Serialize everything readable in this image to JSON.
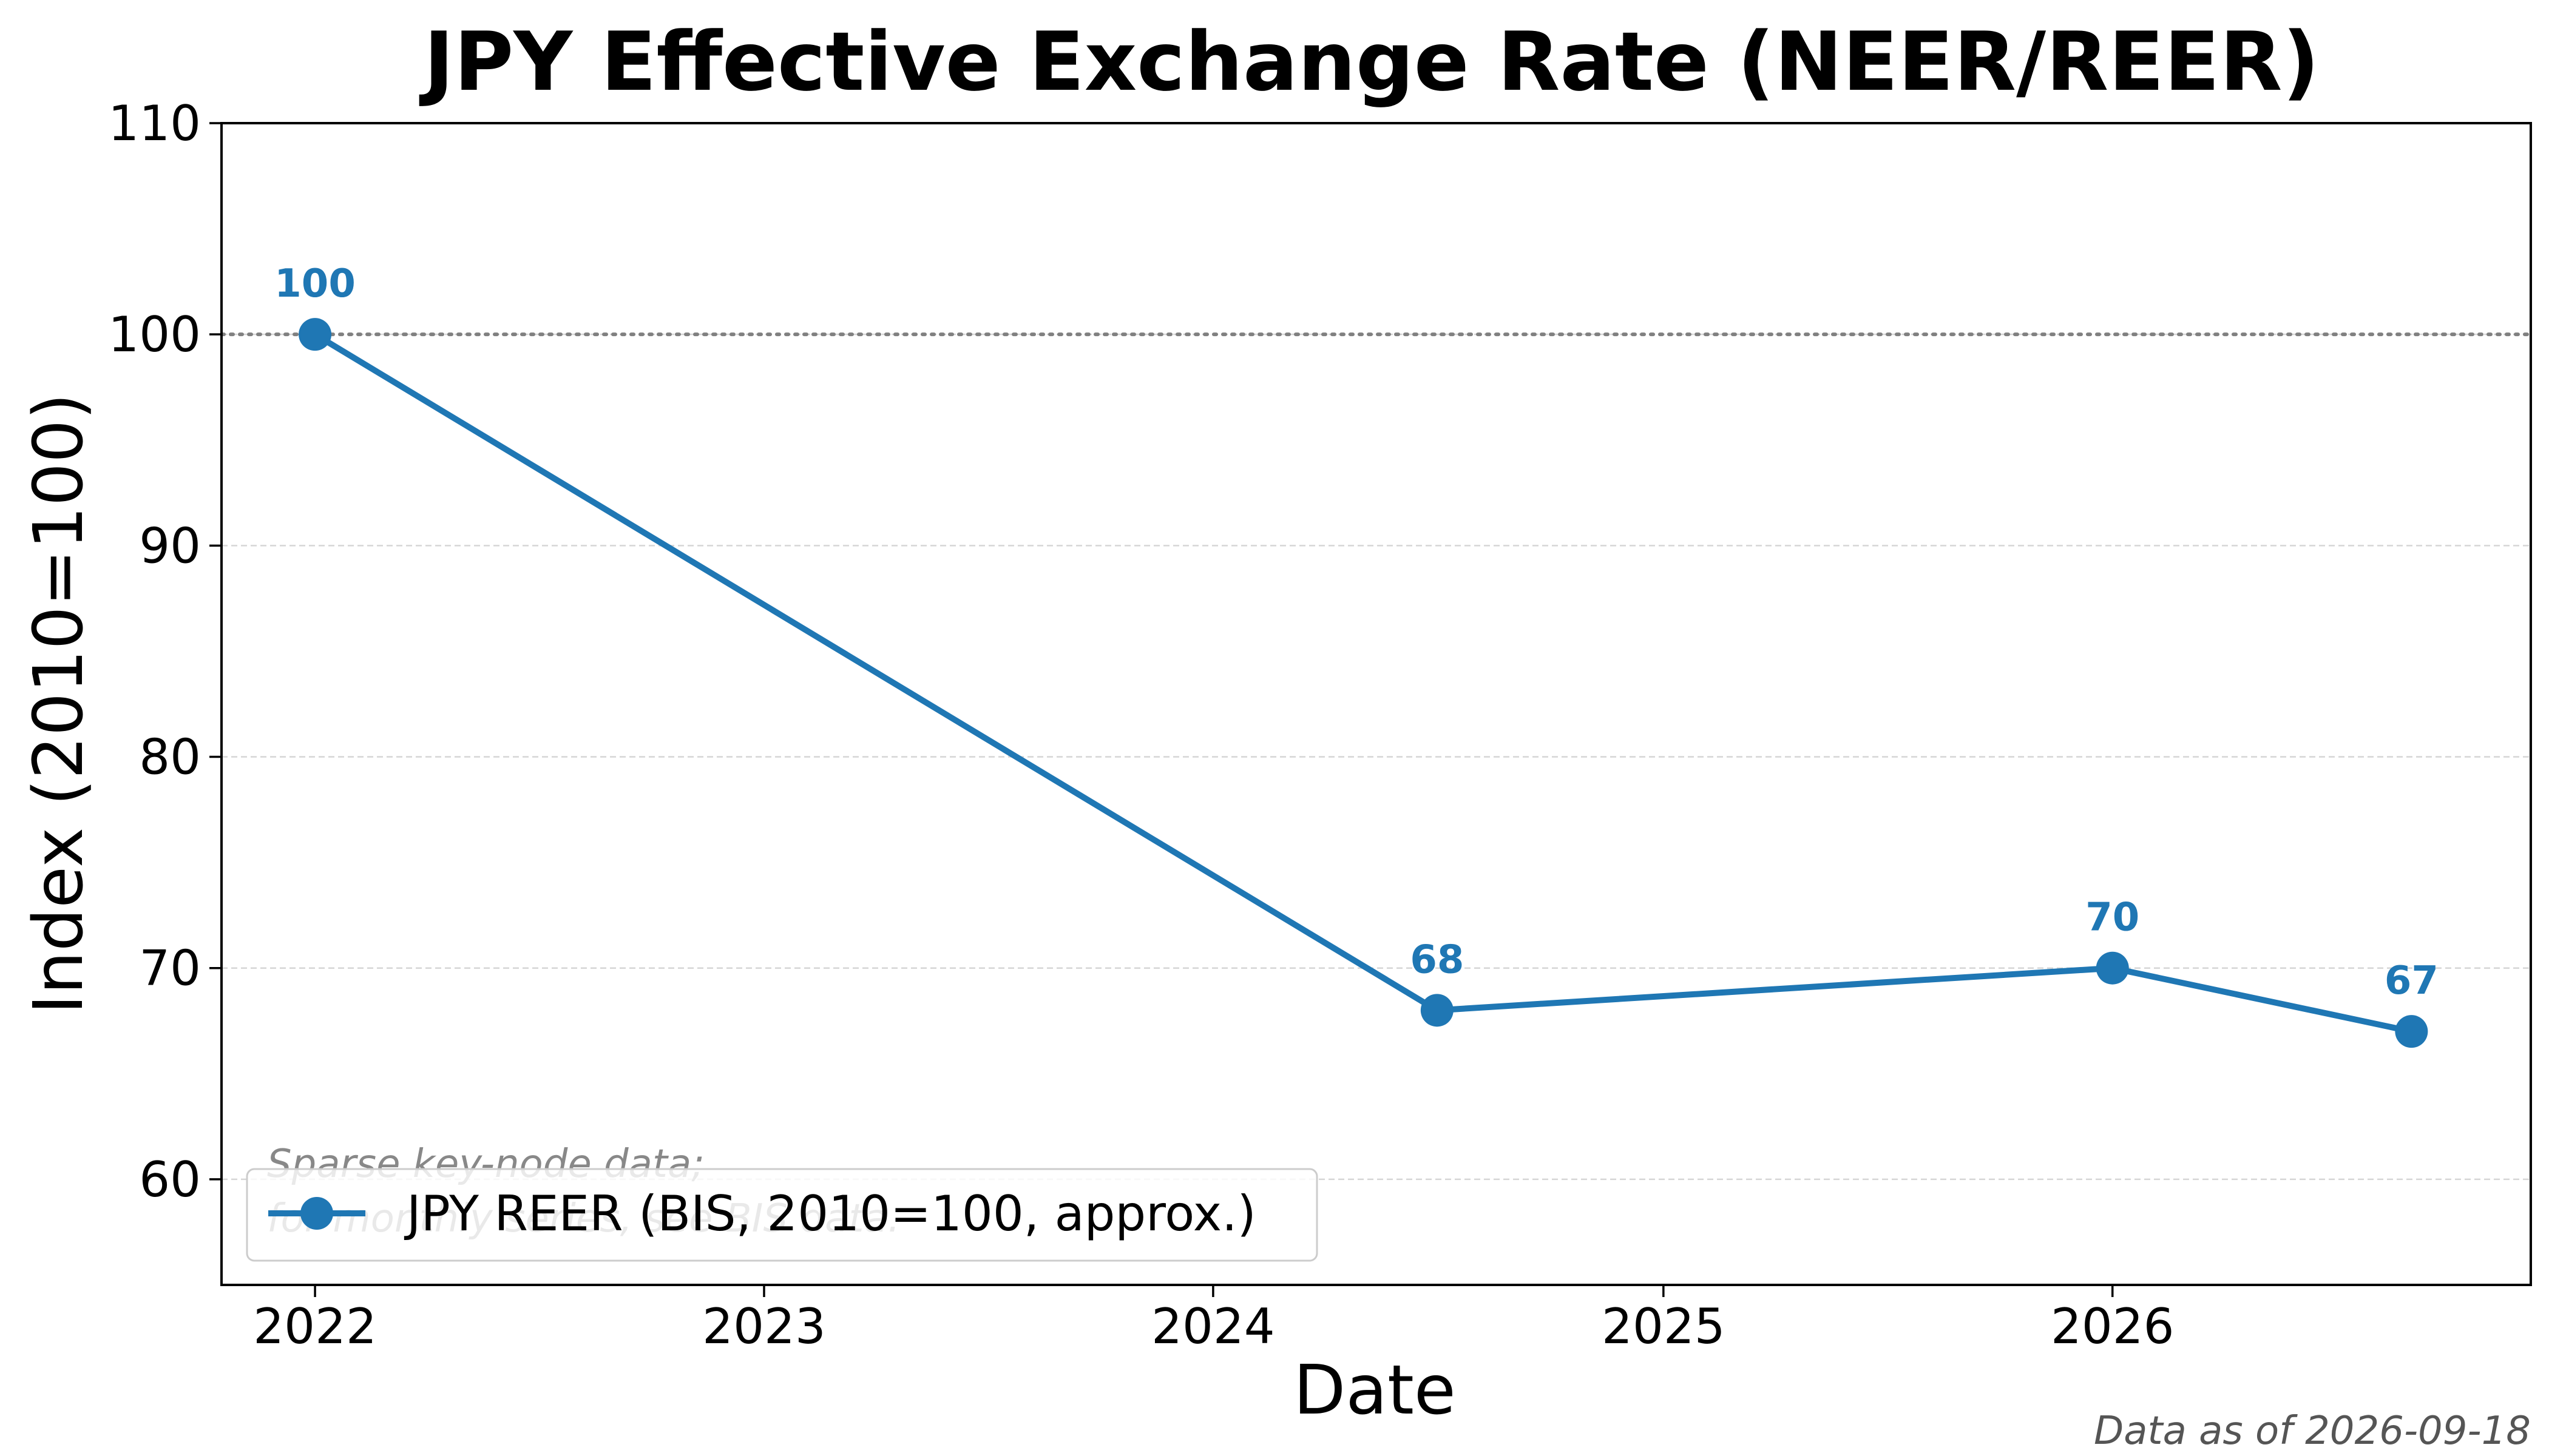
{
  "chart_data": {
    "type": "line",
    "title": "JPY Effective Exchange Rate (NEER/REER)",
    "xlabel": "Date",
    "ylabel": "Index (2010=100)",
    "xlim": [
      "2021-10-17",
      "2026-12-07"
    ],
    "ylim": [
      55,
      110
    ],
    "x_ticks": [
      "2022",
      "2023",
      "2024",
      "2025",
      "2026"
    ],
    "y_ticks": [
      60,
      70,
      80,
      90,
      100,
      110
    ],
    "grid": "horizontal dashed",
    "reference_line": {
      "y": 100,
      "style": "dotted",
      "color": "#808080"
    },
    "legend": {
      "placement": "lower-left"
    },
    "series": [
      {
        "name": "JPY REER (BIS, 2010=100, approx.)",
        "color": "#1f77b4",
        "points": [
          {
            "x": "2022-01-01",
            "y": 100,
            "label": "100"
          },
          {
            "x": "2024-07-01",
            "y": 68,
            "label": "68"
          },
          {
            "x": "2026-01-01",
            "y": 70,
            "label": "70"
          },
          {
            "x": "2026-09-01",
            "y": 67,
            "label": "67"
          }
        ]
      }
    ],
    "annotation": "Sparse key-node data;\nfor monthly series, see BIS data.",
    "footnote": "Data as of 2026-09-18"
  }
}
